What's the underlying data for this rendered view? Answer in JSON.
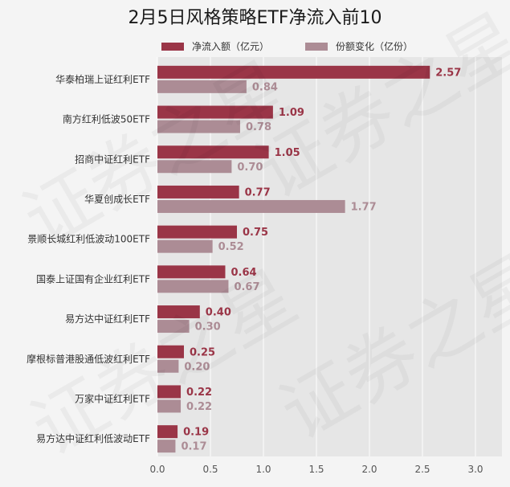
{
  "chart_data": {
    "type": "bar",
    "orientation": "horizontal",
    "title": "2月5日风格策略ETF净流入前10",
    "categories": [
      "华泰柏瑞上证红利ETF",
      "南方红利低波50ETF",
      "招商中证红利ETF",
      "华夏创成长ETF",
      "景顺长城红利低波动100ETF",
      "国泰上证国有企业红利ETF",
      "易方达中证红利ETF",
      "摩根标普港股通低波红利ETF",
      "万家中证红利ETF",
      "易方达中证红利低波动ETF"
    ],
    "series": [
      {
        "name": "净流入额（亿元）",
        "color": "#9a3547",
        "values": [
          2.57,
          1.09,
          1.05,
          0.77,
          0.75,
          0.64,
          0.4,
          0.25,
          0.22,
          0.19
        ],
        "labels": [
          "2.57",
          "1.09",
          "1.05",
          "0.77",
          "0.75",
          "0.64",
          "0.40",
          "0.25",
          "0.22",
          "0.19"
        ]
      },
      {
        "name": "份额变化（亿份）",
        "color": "#ac8c95",
        "values": [
          0.84,
          0.78,
          0.7,
          1.77,
          0.52,
          0.67,
          0.3,
          0.2,
          0.22,
          0.17
        ],
        "labels": [
          "0.84",
          "0.78",
          "0.70",
          "1.77",
          "0.52",
          "0.67",
          "0.30",
          "0.20",
          "0.22",
          "0.17"
        ]
      }
    ],
    "xlim": [
      0,
      3.25
    ],
    "xticks": [
      0.0,
      0.5,
      1.0,
      1.5,
      2.0,
      2.5,
      3.0
    ],
    "xtick_labels": [
      "0.0",
      "0.5",
      "1.0",
      "1.5",
      "2.0",
      "2.5",
      "3.0"
    ],
    "grid": true,
    "legend_position": "top-center"
  },
  "watermark": [
    "证券之星",
    "证券之星",
    "证券之星",
    "证券之星"
  ]
}
